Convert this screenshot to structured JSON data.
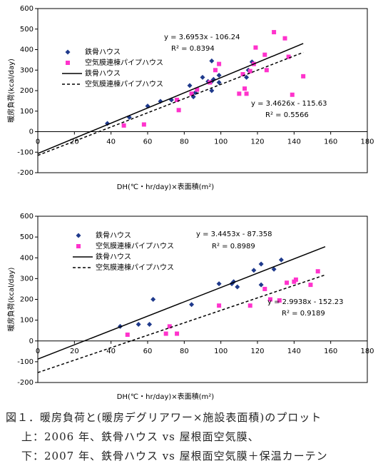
{
  "chart_data": [
    {
      "type": "scatter",
      "ylabel": "暖房負荷(kcal/day)",
      "xlabel": "DH(℃・hr/day)×表面積(m²)",
      "xlim": [
        0,
        180
      ],
      "ylim": [
        -200,
        600
      ],
      "xticks": [
        0,
        20,
        40,
        60,
        80,
        100,
        120,
        140,
        160,
        180
      ],
      "yticks": [
        -200,
        -100,
        0,
        100,
        200,
        300,
        400,
        500,
        600
      ],
      "series": [
        {
          "name": "鉄骨ハウス",
          "marker": "diamond",
          "color": "#1f3a8c",
          "x": [
            38,
            50,
            60,
            67,
            73,
            83,
            85,
            86,
            90,
            93,
            95,
            95,
            95,
            96,
            99,
            99,
            114,
            117,
            115
          ],
          "values": [
            40,
            70,
            125,
            148,
            155,
            225,
            170,
            190,
            265,
            245,
            200,
            245,
            345,
            255,
            240,
            275,
            265,
            340,
            300
          ]
        },
        {
          "name": "空気膜連棟パイプハウス",
          "marker": "square",
          "color": "#ff33cc",
          "x": [
            47,
            58,
            76,
            77,
            84,
            87,
            94,
            97,
            99,
            110,
            112,
            113,
            114,
            116,
            118,
            119,
            124,
            125,
            129,
            135,
            137,
            139,
            145
          ],
          "values": [
            30,
            35,
            155,
            105,
            185,
            205,
            240,
            300,
            330,
            185,
            280,
            210,
            185,
            295,
            330,
            410,
            375,
            300,
            485,
            455,
            365,
            180,
            270
          ]
        },
        {
          "name": "鉄骨ハウス",
          "marker": "line",
          "dash": false,
          "color": "#000000",
          "x": [
            0,
            145
          ],
          "values": [
            -106.24,
            429.6
          ]
        },
        {
          "name": "空気膜連棟パイプハウス",
          "marker": "line",
          "dash": true,
          "color": "#000000",
          "x": [
            0,
            145
          ],
          "values": [
            -115.63,
            386.3
          ]
        }
      ],
      "annotations": [
        "y = 3.6953x - 106.24",
        "R² = 0.8394",
        "y = 3.4626x - 115.63",
        "R² = 0.5566"
      ]
    },
    {
      "type": "scatter",
      "ylabel": "暖房負荷(kcal/day)",
      "xlabel": "DH(℃・hr/day)×表面積(m²)",
      "xlim": [
        0,
        180
      ],
      "ylim": [
        -200,
        600
      ],
      "xticks": [
        0,
        20,
        40,
        60,
        80,
        100,
        120,
        140,
        160,
        180
      ],
      "yticks": [
        -200,
        -100,
        0,
        100,
        200,
        300,
        400,
        500,
        600
      ],
      "series": [
        {
          "name": "鉄骨ハウス",
          "marker": "diamond",
          "color": "#1f3a8c",
          "x": [
            45,
            55,
            61,
            63,
            84,
            99,
            106,
            107,
            109,
            118,
            122,
            122,
            129,
            133
          ],
          "values": [
            70,
            80,
            80,
            200,
            175,
            275,
            275,
            285,
            260,
            340,
            370,
            270,
            345,
            390
          ]
        },
        {
          "name": "空気膜連棟パイプハウス",
          "marker": "square",
          "color": "#ff33cc",
          "x": [
            49,
            70,
            72,
            76,
            99,
            116,
            124,
            127,
            132,
            136,
            140,
            141,
            149,
            153
          ],
          "values": [
            30,
            35,
            70,
            35,
            170,
            170,
            250,
            200,
            195,
            280,
            285,
            295,
            270,
            335
          ]
        },
        {
          "name": "鉄骨ハウス",
          "marker": "line",
          "dash": false,
          "color": "#000000",
          "x": [
            0,
            157
          ],
          "values": [
            -87.36,
            453.5
          ]
        },
        {
          "name": "空気膜連棟パイプハウス",
          "marker": "line",
          "dash": true,
          "color": "#000000",
          "x": [
            0,
            157
          ],
          "values": [
            -152.23,
            317.8
          ]
        }
      ],
      "annotations": [
        "y = 3.4453x - 87.358",
        "R² = 0.8989",
        "y = 2.9938x - 152.23",
        "R² = 0.9189"
      ]
    }
  ],
  "caption": [
    "図１．暖房負荷と(暖房デグリアワー×施設表面積)のプロット",
    "上：2006 年、鉄骨ハウス vs 屋根面空気膜、",
    "下：2007 年、鉄骨ハウス vs 屋根面空気膜＋保温カーテン"
  ]
}
